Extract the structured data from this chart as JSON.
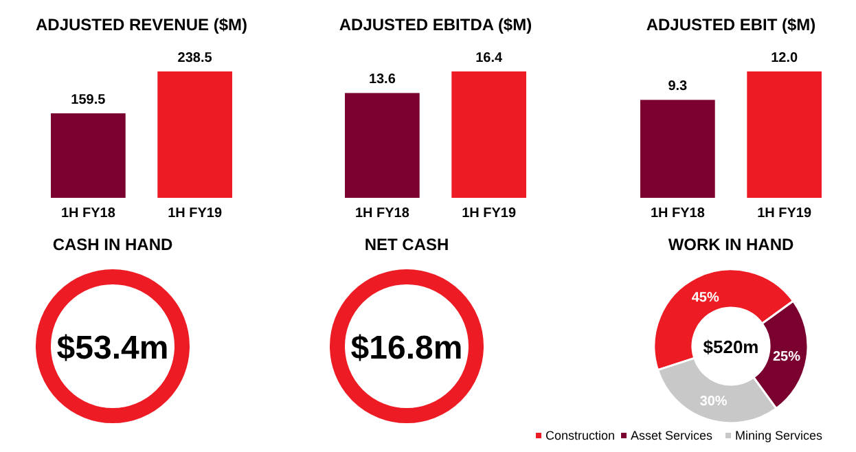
{
  "chart_data": [
    {
      "type": "bar",
      "title": "ADJUSTED REVENUE ($M)",
      "categories": [
        "1H FY18",
        "1H FY19"
      ],
      "values": [
        159.5,
        238.5
      ],
      "colors": [
        "#7a0030",
        "#ed1c24"
      ],
      "data_labels": true
    },
    {
      "type": "bar",
      "title": "ADJUSTED EBITDA ($M)",
      "categories": [
        "1H FY18",
        "1H FY19"
      ],
      "values": [
        13.6,
        16.4
      ],
      "colors": [
        "#7a0030",
        "#ed1c24"
      ],
      "data_labels": true
    },
    {
      "type": "bar",
      "title": "ADJUSTED EBIT ($M)",
      "categories": [
        "1H FY18",
        "1H FY19"
      ],
      "values": [
        9.3,
        12.0
      ],
      "colors": [
        "#7a0030",
        "#ed1c24"
      ],
      "value_labels": [
        "9.3",
        "12.0"
      ]
    },
    {
      "type": "other",
      "title": "CASH IN HAND",
      "annotations": [
        "$53.4m"
      ]
    },
    {
      "type": "other",
      "title": "NET CASH",
      "annotations": [
        "$16.8m"
      ]
    },
    {
      "type": "donut",
      "title": "WORK IN HAND",
      "categories": [
        "Construction",
        "Asset Services",
        "Mining Services"
      ],
      "values": [
        45,
        25,
        30
      ],
      "colors": [
        "#ed1c24",
        "#7a0030",
        "#c8c8c8"
      ],
      "value_labels": [
        "45%",
        "25%",
        "30%"
      ],
      "annotations": [
        "$520m"
      ],
      "legend": "bottom"
    }
  ]
}
